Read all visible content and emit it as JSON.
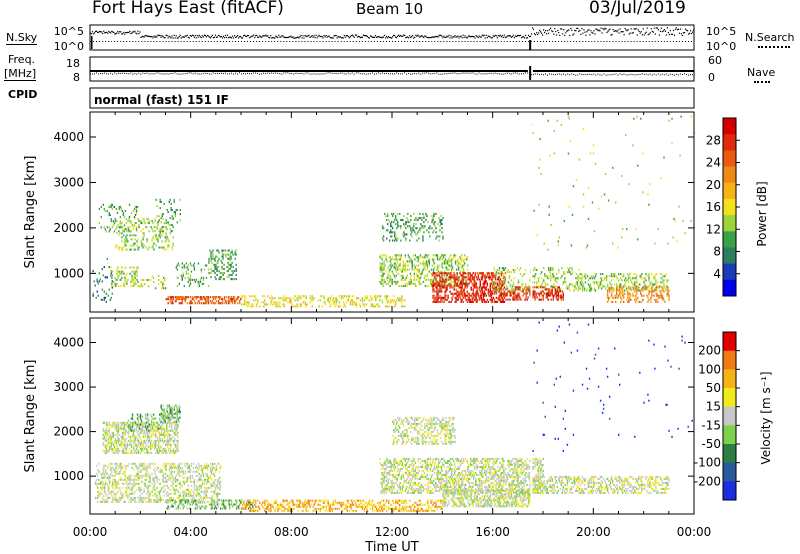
{
  "header": {
    "station": "Fort Hays East (fitACF)",
    "beam": "Beam 10",
    "date": "03/Jul/2019"
  },
  "top_panels": {
    "nsky_label": "N.Sky",
    "nsky_ticks": [
      "10^5",
      "10^0"
    ],
    "nsearch_label": "N.Search",
    "nsearch_ticks": [
      "10^5",
      "10^0"
    ],
    "freq_label": "Freq.",
    "freq_unit": "[MHz]",
    "freq_ticks": [
      "18",
      "8"
    ],
    "nave_label": "Nave",
    "nave_ticks": [
      "60",
      "0"
    ],
    "cpid_label": "CPID",
    "cpid_text": "normal (fast) 151 IF"
  },
  "colors": {
    "power_scale": [
      "#0000ee",
      "#1a3cb4",
      "#2e7d5c",
      "#3aa14a",
      "#9dd43c",
      "#f4e11b",
      "#f5b316",
      "#f08a14",
      "#ea5a10",
      "#e02a0c",
      "#d40000"
    ],
    "velocity_scale": [
      "#1a2ee0",
      "#2a5a9a",
      "#2e7d45",
      "#7fd04a",
      "#c8c8c8",
      "#f3ea1e",
      "#f6b316",
      "#f07a14",
      "#e00000"
    ]
  },
  "chart_data": [
    {
      "type": "heatmap",
      "name": "power",
      "ylabel": "Slant Range [km]",
      "yticks": [
        "1000",
        "2000",
        "3000",
        "4000"
      ],
      "ylim": [
        150,
        4550
      ],
      "xlim": [
        0,
        24
      ],
      "xticks": [
        "00:00",
        "04:00",
        "08:00",
        "12:00",
        "16:00",
        "20:00",
        "00:00"
      ],
      "colorbar_label": "Power [dB]",
      "colorbar_ticks": [
        "4",
        "8",
        "12",
        "16",
        "20",
        "24",
        "28"
      ],
      "regions": [
        {
          "t0": 0.1,
          "t1": 0.9,
          "r0": 350,
          "r1": 1300,
          "level": 2,
          "density": 0.08
        },
        {
          "t0": 0.3,
          "t1": 1.9,
          "r0": 1900,
          "r1": 2500,
          "level": 3,
          "density": 0.15
        },
        {
          "t0": 1.0,
          "t1": 3.3,
          "r0": 1500,
          "r1": 2200,
          "level": 4,
          "density": 0.25
        },
        {
          "t0": 2.6,
          "t1": 3.6,
          "r0": 2100,
          "r1": 2600,
          "level": 3,
          "density": 0.2
        },
        {
          "t0": 0.8,
          "t1": 1.9,
          "r0": 700,
          "r1": 1150,
          "level": 4,
          "density": 0.28
        },
        {
          "t0": 1.9,
          "t1": 3.0,
          "r0": 650,
          "r1": 950,
          "level": 4,
          "density": 0.2
        },
        {
          "t0": 3.4,
          "t1": 4.7,
          "r0": 700,
          "r1": 1200,
          "level": 3,
          "density": 0.22
        },
        {
          "t0": 4.7,
          "t1": 5.8,
          "r0": 850,
          "r1": 1500,
          "level": 3,
          "density": 0.3
        },
        {
          "t0": 3.0,
          "t1": 6.0,
          "r0": 320,
          "r1": 480,
          "level": 8,
          "density": 0.55
        },
        {
          "t0": 6.0,
          "t1": 12.5,
          "r0": 250,
          "r1": 500,
          "level": 5,
          "density": 0.3
        },
        {
          "t0": 11.6,
          "t1": 14.0,
          "r0": 1700,
          "r1": 2300,
          "level": 3,
          "density": 0.22
        },
        {
          "t0": 11.5,
          "t1": 15.0,
          "r0": 700,
          "r1": 1400,
          "level": 4,
          "density": 0.35
        },
        {
          "t0": 13.6,
          "t1": 16.5,
          "r0": 350,
          "r1": 1000,
          "level": 9,
          "density": 0.5
        },
        {
          "t0": 16.5,
          "t1": 18.8,
          "r0": 400,
          "r1": 700,
          "level": 9,
          "density": 0.45
        },
        {
          "t0": 16.0,
          "t1": 19.5,
          "r0": 600,
          "r1": 1100,
          "level": 4,
          "density": 0.2
        },
        {
          "t0": 19.3,
          "t1": 23.0,
          "r0": 600,
          "r1": 1000,
          "level": 4,
          "density": 0.3
        },
        {
          "t0": 20.5,
          "t1": 23.0,
          "r0": 350,
          "r1": 700,
          "level": 7,
          "density": 0.35
        },
        {
          "t0": 17.5,
          "t1": 24.0,
          "r0": 1500,
          "r1": 4500,
          "level": 4,
          "density": 0.008
        }
      ]
    },
    {
      "type": "heatmap",
      "name": "velocity",
      "ylabel": "Slant Range [km]",
      "yticks": [
        "1000",
        "2000",
        "3000",
        "4000"
      ],
      "ylim": [
        150,
        4550
      ],
      "xlim": [
        0,
        24
      ],
      "xticks": [
        "00:00",
        "04:00",
        "08:00",
        "12:00",
        "16:00",
        "20:00",
        "00:00"
      ],
      "xlabel": "Time UT",
      "colorbar_label": "Velocity [m s⁻¹]",
      "colorbar_ticks": [
        "200",
        "100",
        "50",
        "15",
        "-15",
        "-50",
        "-100",
        "-200"
      ],
      "regions": [
        {
          "t0": 0.2,
          "t1": 5.2,
          "r0": 400,
          "r1": 1300,
          "level": 4,
          "density": 0.35
        },
        {
          "t0": 0.5,
          "t1": 3.5,
          "r0": 1500,
          "r1": 2200,
          "level": 4,
          "density": 0.5
        },
        {
          "t0": 1.5,
          "t1": 3.0,
          "r0": 2000,
          "r1": 2400,
          "level": 3,
          "density": 0.3
        },
        {
          "t0": 2.8,
          "t1": 3.6,
          "r0": 2200,
          "r1": 2600,
          "level": 3,
          "density": 0.5
        },
        {
          "t0": 3.0,
          "t1": 6.5,
          "r0": 250,
          "r1": 450,
          "level": 3,
          "density": 0.4
        },
        {
          "t0": 6.0,
          "t1": 14.0,
          "r0": 200,
          "r1": 450,
          "level": 6,
          "density": 0.4
        },
        {
          "t0": 12.0,
          "t1": 14.5,
          "r0": 1700,
          "r1": 2300,
          "level": 4,
          "density": 0.35
        },
        {
          "t0": 11.5,
          "t1": 18.0,
          "r0": 600,
          "r1": 1400,
          "level": 4,
          "density": 0.45
        },
        {
          "t0": 14.0,
          "t1": 17.5,
          "r0": 300,
          "r1": 700,
          "level": 4,
          "density": 0.55
        },
        {
          "t0": 17.5,
          "t1": 23.0,
          "r0": 600,
          "r1": 1000,
          "level": 4,
          "density": 0.4
        },
        {
          "t0": 17.5,
          "t1": 24.0,
          "r0": 1500,
          "r1": 4500,
          "level": 0,
          "density": 0.006
        }
      ]
    }
  ]
}
